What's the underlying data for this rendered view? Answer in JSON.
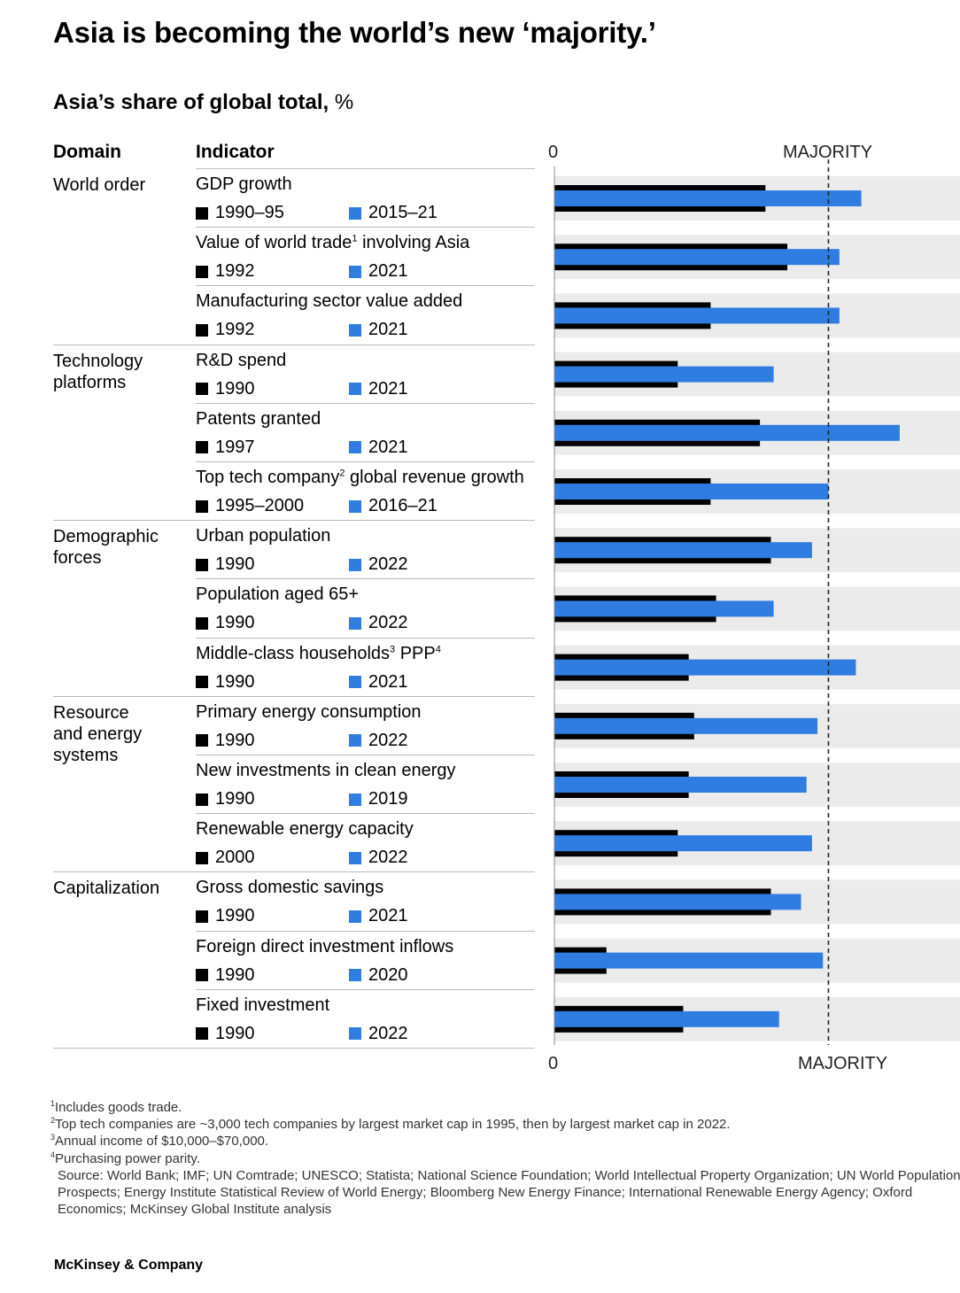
{
  "title": "Asia is becoming the world’s new ‘majority.’",
  "subtitle": {
    "bold": "Asia’s share of global total,",
    "unit": " %"
  },
  "columns": {
    "domain": "Domain",
    "indicator": "Indicator"
  },
  "axis": {
    "zero_top": "0",
    "majority_top": "MAJORITY",
    "zero_bottom": "0",
    "majority_bottom": "MAJORITY"
  },
  "domains": [
    {
      "label": "World order",
      "start_row": 0
    },
    {
      "label": "Technology platforms",
      "start_row": 3
    },
    {
      "label": "Demographic forces",
      "start_row": 6
    },
    {
      "label": "Resource and energy systems",
      "start_row": 9
    },
    {
      "label": "Capitalization",
      "start_row": 12
    }
  ],
  "colors": {
    "early": "#000000",
    "late": "#2f7de1",
    "track": "#ebebeb",
    "majority_line": "#222222"
  },
  "chart_data": {
    "type": "bar",
    "xlabel": "",
    "x_range": [
      0,
      74
    ],
    "majority": 50,
    "grid": false,
    "series_names": [
      "early year",
      "late year"
    ],
    "rows": [
      {
        "indicator": "GDP growth",
        "sup": "",
        "early_label": "1990–95",
        "late_label": "2015–21",
        "early": 38.5,
        "late": 56
      },
      {
        "indicator": "Value of world trade",
        "sup": "1",
        "indicator_suffix": " involving Asia",
        "early_label": "1992",
        "late_label": "2021",
        "early": 42.5,
        "late": 52
      },
      {
        "indicator": "Manufacturing sector value added",
        "sup": "",
        "early_label": "1992",
        "late_label": "2021",
        "early": 28.5,
        "late": 52
      },
      {
        "indicator": "R&D spend",
        "sup": "",
        "early_label": "1990",
        "late_label": "2021",
        "early": 22.5,
        "late": 40
      },
      {
        "indicator": "Patents granted",
        "sup": "",
        "early_label": "1997",
        "late_label": "2021",
        "early": 37.5,
        "late": 63
      },
      {
        "indicator": "Top tech company",
        "sup": "2",
        "indicator_suffix": " global revenue growth",
        "early_label": "1995–2000",
        "late_label": "2016–21",
        "early": 28.5,
        "late": 50
      },
      {
        "indicator": "Urban population",
        "sup": "",
        "early_label": "1990",
        "late_label": "2022",
        "early": 39.5,
        "late": 47
      },
      {
        "indicator": "Population aged 65+",
        "sup": "",
        "early_label": "1990",
        "late_label": "2022",
        "early": 29.5,
        "late": 40
      },
      {
        "indicator": "Middle-class households",
        "sup": "3",
        "indicator_suffix": " PPP",
        "sup2": "4",
        "early_label": "1990",
        "late_label": "2021",
        "early": 24.5,
        "late": 55
      },
      {
        "indicator": "Primary energy consumption",
        "sup": "",
        "early_label": "1990",
        "late_label": "2022",
        "early": 25.5,
        "late": 48
      },
      {
        "indicator": "New investments in clean energy",
        "sup": "",
        "early_label": "1990",
        "late_label": "2019",
        "early": 24.5,
        "late": 46
      },
      {
        "indicator": "Renewable energy capacity",
        "sup": "",
        "early_label": "2000",
        "late_label": "2022",
        "early": 22.5,
        "late": 47
      },
      {
        "indicator": "Gross domestic savings",
        "sup": "",
        "early_label": "1990",
        "late_label": "2021",
        "early": 39.5,
        "late": 45
      },
      {
        "indicator": "Foreign direct investment inflows",
        "sup": "",
        "early_label": "1990",
        "late_label": "2020",
        "early": 9.5,
        "late": 49
      },
      {
        "indicator": "Fixed investment",
        "sup": "",
        "early_label": "1990",
        "late_label": "2022",
        "early": 23.5,
        "late": 41
      }
    ]
  },
  "footnotes": [
    {
      "sup": "1",
      "text": "Includes goods trade."
    },
    {
      "sup": "2",
      "text": "Top tech companies are ~3,000 tech companies by largest market cap in 1995, then by largest market cap in 2022."
    },
    {
      "sup": "3",
      "text": "Annual income of $10,000–$70,000."
    },
    {
      "sup": "4",
      "text": "Purchasing power parity."
    }
  ],
  "source_lines": [
    "Source: World Bank; IMF; UN Comtrade; UNESCO; Statista; National Science Foundation; World Intellectual Property Organization; UN World Population",
    "Prospects; Energy Institute Statistical Review of World Energy; Bloomberg New Energy Finance; International Renewable Energy Agency; Oxford",
    "Economics; McKinsey Global Institute analysis"
  ],
  "brand": "McKinsey & Company"
}
